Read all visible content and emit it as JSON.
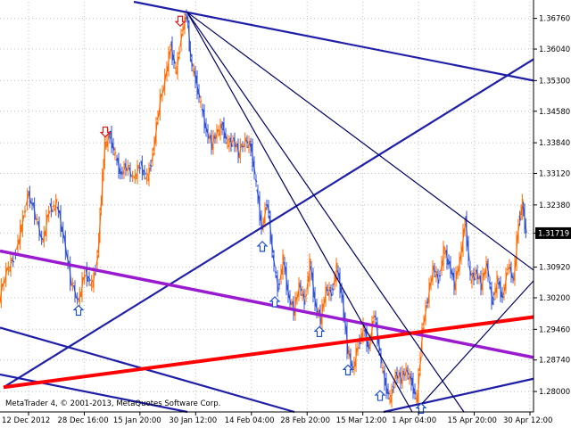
{
  "window": {
    "copyright": "MetaTrader 4, © 2001-2013, MetaQuotes Software Corp."
  },
  "colors": {
    "background": "#ffffff",
    "grid": "#c0c0c0",
    "up_candle": "#ff6a00",
    "down_candle": "#3050d0",
    "channel_line": "#1e1ea8",
    "thin_line": "#000066",
    "median_line": "#9a1ad0",
    "red_line": "#ff0000",
    "arrow_down": "#dd2020",
    "arrow_up": "#2050cc",
    "price_label_bg": "#000000"
  },
  "price_scale": {
    "labels": [
      "1.36760",
      "1.36040",
      "1.35300",
      "1.34580",
      "1.33840",
      "1.33120",
      "1.32380",
      "1.31719",
      "1.30920",
      "1.30200",
      "1.29460",
      "1.28740",
      "1.28000"
    ]
  },
  "current_price": "1.31719",
  "time_scale": {
    "labels": [
      "12 Dec 2012",
      "28 Dec 16:00",
      "15 Jan 20:00",
      "30 Jan 12:00",
      "14 Feb 04:00",
      "28 Feb 20:00",
      "15 Mar 12:00",
      "1 Apr 04:00",
      "15 Apr 20:00",
      "30 Apr 12:00"
    ]
  },
  "chart_data": {
    "type": "line",
    "symbol_timeframe": "",
    "y_range": [
      1.2752,
      1.3715
    ],
    "x_range": [
      "12 Dec 2012",
      "30 Apr 12:00"
    ],
    "price_path": [
      [
        0,
        1.302
      ],
      [
        8,
        1.3085
      ],
      [
        16,
        1.311
      ],
      [
        24,
        1.318
      ],
      [
        32,
        1.3265
      ],
      [
        40,
        1.3215
      ],
      [
        48,
        1.315
      ],
      [
        56,
        1.323
      ],
      [
        64,
        1.324
      ],
      [
        72,
        1.316
      ],
      [
        80,
        1.306
      ],
      [
        88,
        1.301
      ],
      [
        96,
        1.308
      ],
      [
        104,
        1.305
      ],
      [
        110,
        1.312
      ],
      [
        114,
        1.326
      ],
      [
        118,
        1.338
      ],
      [
        124,
        1.34
      ],
      [
        130,
        1.335
      ],
      [
        136,
        1.331
      ],
      [
        142,
        1.333
      ],
      [
        150,
        1.33
      ],
      [
        158,
        1.333
      ],
      [
        166,
        1.33
      ],
      [
        172,
        1.336
      ],
      [
        178,
        1.346
      ],
      [
        186,
        1.354
      ],
      [
        192,
        1.361
      ],
      [
        198,
        1.355
      ],
      [
        204,
        1.364
      ],
      [
        210,
        1.369
      ],
      [
        214,
        1.358
      ],
      [
        220,
        1.353
      ],
      [
        226,
        1.347
      ],
      [
        232,
        1.341
      ],
      [
        238,
        1.338
      ],
      [
        244,
        1.341
      ],
      [
        250,
        1.342
      ],
      [
        256,
        1.338
      ],
      [
        262,
        1.339
      ],
      [
        268,
        1.336
      ],
      [
        276,
        1.339
      ],
      [
        282,
        1.337
      ],
      [
        288,
        1.328
      ],
      [
        294,
        1.318
      ],
      [
        300,
        1.325
      ],
      [
        306,
        1.312
      ],
      [
        312,
        1.304
      ],
      [
        318,
        1.311
      ],
      [
        324,
        1.302
      ],
      [
        330,
        1.299
      ],
      [
        336,
        1.305
      ],
      [
        342,
        1.301
      ],
      [
        348,
        1.31
      ],
      [
        354,
        1.3
      ],
      [
        360,
        1.297
      ],
      [
        366,
        1.304
      ],
      [
        372,
        1.303
      ],
      [
        378,
        1.309
      ],
      [
        384,
        1.302
      ],
      [
        390,
        1.29
      ],
      [
        396,
        1.285
      ],
      [
        402,
        1.291
      ],
      [
        408,
        1.295
      ],
      [
        414,
        1.29
      ],
      [
        420,
        1.299
      ],
      [
        426,
        1.289
      ],
      [
        432,
        1.282
      ],
      [
        438,
        1.278
      ],
      [
        444,
        1.284
      ],
      [
        450,
        1.283
      ],
      [
        456,
        1.285
      ],
      [
        462,
        1.282
      ],
      [
        468,
        1.278
      ],
      [
        474,
        1.295
      ],
      [
        480,
        1.302
      ],
      [
        486,
        1.309
      ],
      [
        492,
        1.306
      ],
      [
        498,
        1.313
      ],
      [
        504,
        1.31
      ],
      [
        510,
        1.305
      ],
      [
        516,
        1.311
      ],
      [
        522,
        1.32
      ],
      [
        528,
        1.306
      ],
      [
        534,
        1.308
      ],
      [
        540,
        1.305
      ],
      [
        546,
        1.31
      ],
      [
        552,
        1.301
      ],
      [
        558,
        1.306
      ],
      [
        564,
        1.302
      ],
      [
        570,
        1.31
      ],
      [
        576,
        1.306
      ],
      [
        582,
        1.32
      ],
      [
        586,
        1.324
      ],
      [
        590,
        1.3172
      ]
    ],
    "trendlines": [
      {
        "name": "upper-channel",
        "color": "#1e1ea8",
        "from": [
          150,
          1.3715
        ],
        "to": [
          598,
          1.353
        ]
      },
      {
        "name": "rising-channel",
        "color": "#1e1ea8",
        "from": [
          4,
          1.281
        ],
        "to": [
          598,
          1.358
        ]
      },
      {
        "name": "lower-parallel-1",
        "color": "#1e1ea8",
        "from": [
          0,
          1.295
        ],
        "to": [
          330,
          1.2752
        ]
      },
      {
        "name": "lower-parallel-2",
        "color": "#1e1ea8",
        "from": [
          0,
          1.284
        ],
        "to": [
          210,
          1.2752
        ]
      },
      {
        "name": "bottom-rising",
        "color": "#1e1ea8",
        "from": [
          430,
          1.2752
        ],
        "to": [
          598,
          1.283
        ]
      },
      {
        "name": "median-line",
        "color": "#9a1ad0",
        "from": [
          0,
          1.313
        ],
        "to": [
          598,
          1.288
        ]
      },
      {
        "name": "red-trend",
        "color": "#ff0000",
        "from": [
          4,
          1.281
        ],
        "to": [
          598,
          1.2975
        ]
      },
      {
        "name": "gann-fan-1",
        "color": "#000066",
        "from": [
          210,
          1.369
        ],
        "to": [
          598,
          1.3085
        ]
      },
      {
        "name": "gann-fan-2",
        "color": "#000066",
        "from": [
          210,
          1.369
        ],
        "to": [
          520,
          1.2752
        ]
      },
      {
        "name": "gann-fan-3",
        "color": "#000066",
        "from": [
          210,
          1.369
        ],
        "to": [
          462,
          1.2752
        ]
      },
      {
        "name": "thin-rising",
        "color": "#000066",
        "from": [
          468,
          1.276
        ],
        "to": [
          598,
          1.306
        ]
      }
    ],
    "arrows": [
      {
        "dir": "down",
        "x": 118,
        "price": 1.34
      },
      {
        "dir": "down",
        "x": 202,
        "price": 1.366
      },
      {
        "dir": "up",
        "x": 88,
        "price": 1.3
      },
      {
        "dir": "up",
        "x": 294,
        "price": 1.315
      },
      {
        "dir": "up",
        "x": 308,
        "price": 1.302
      },
      {
        "dir": "up",
        "x": 358,
        "price": 1.295
      },
      {
        "dir": "up",
        "x": 390,
        "price": 1.286
      },
      {
        "dir": "up",
        "x": 426,
        "price": 1.28
      },
      {
        "dir": "up",
        "x": 472,
        "price": 1.277
      }
    ],
    "grid": true
  }
}
